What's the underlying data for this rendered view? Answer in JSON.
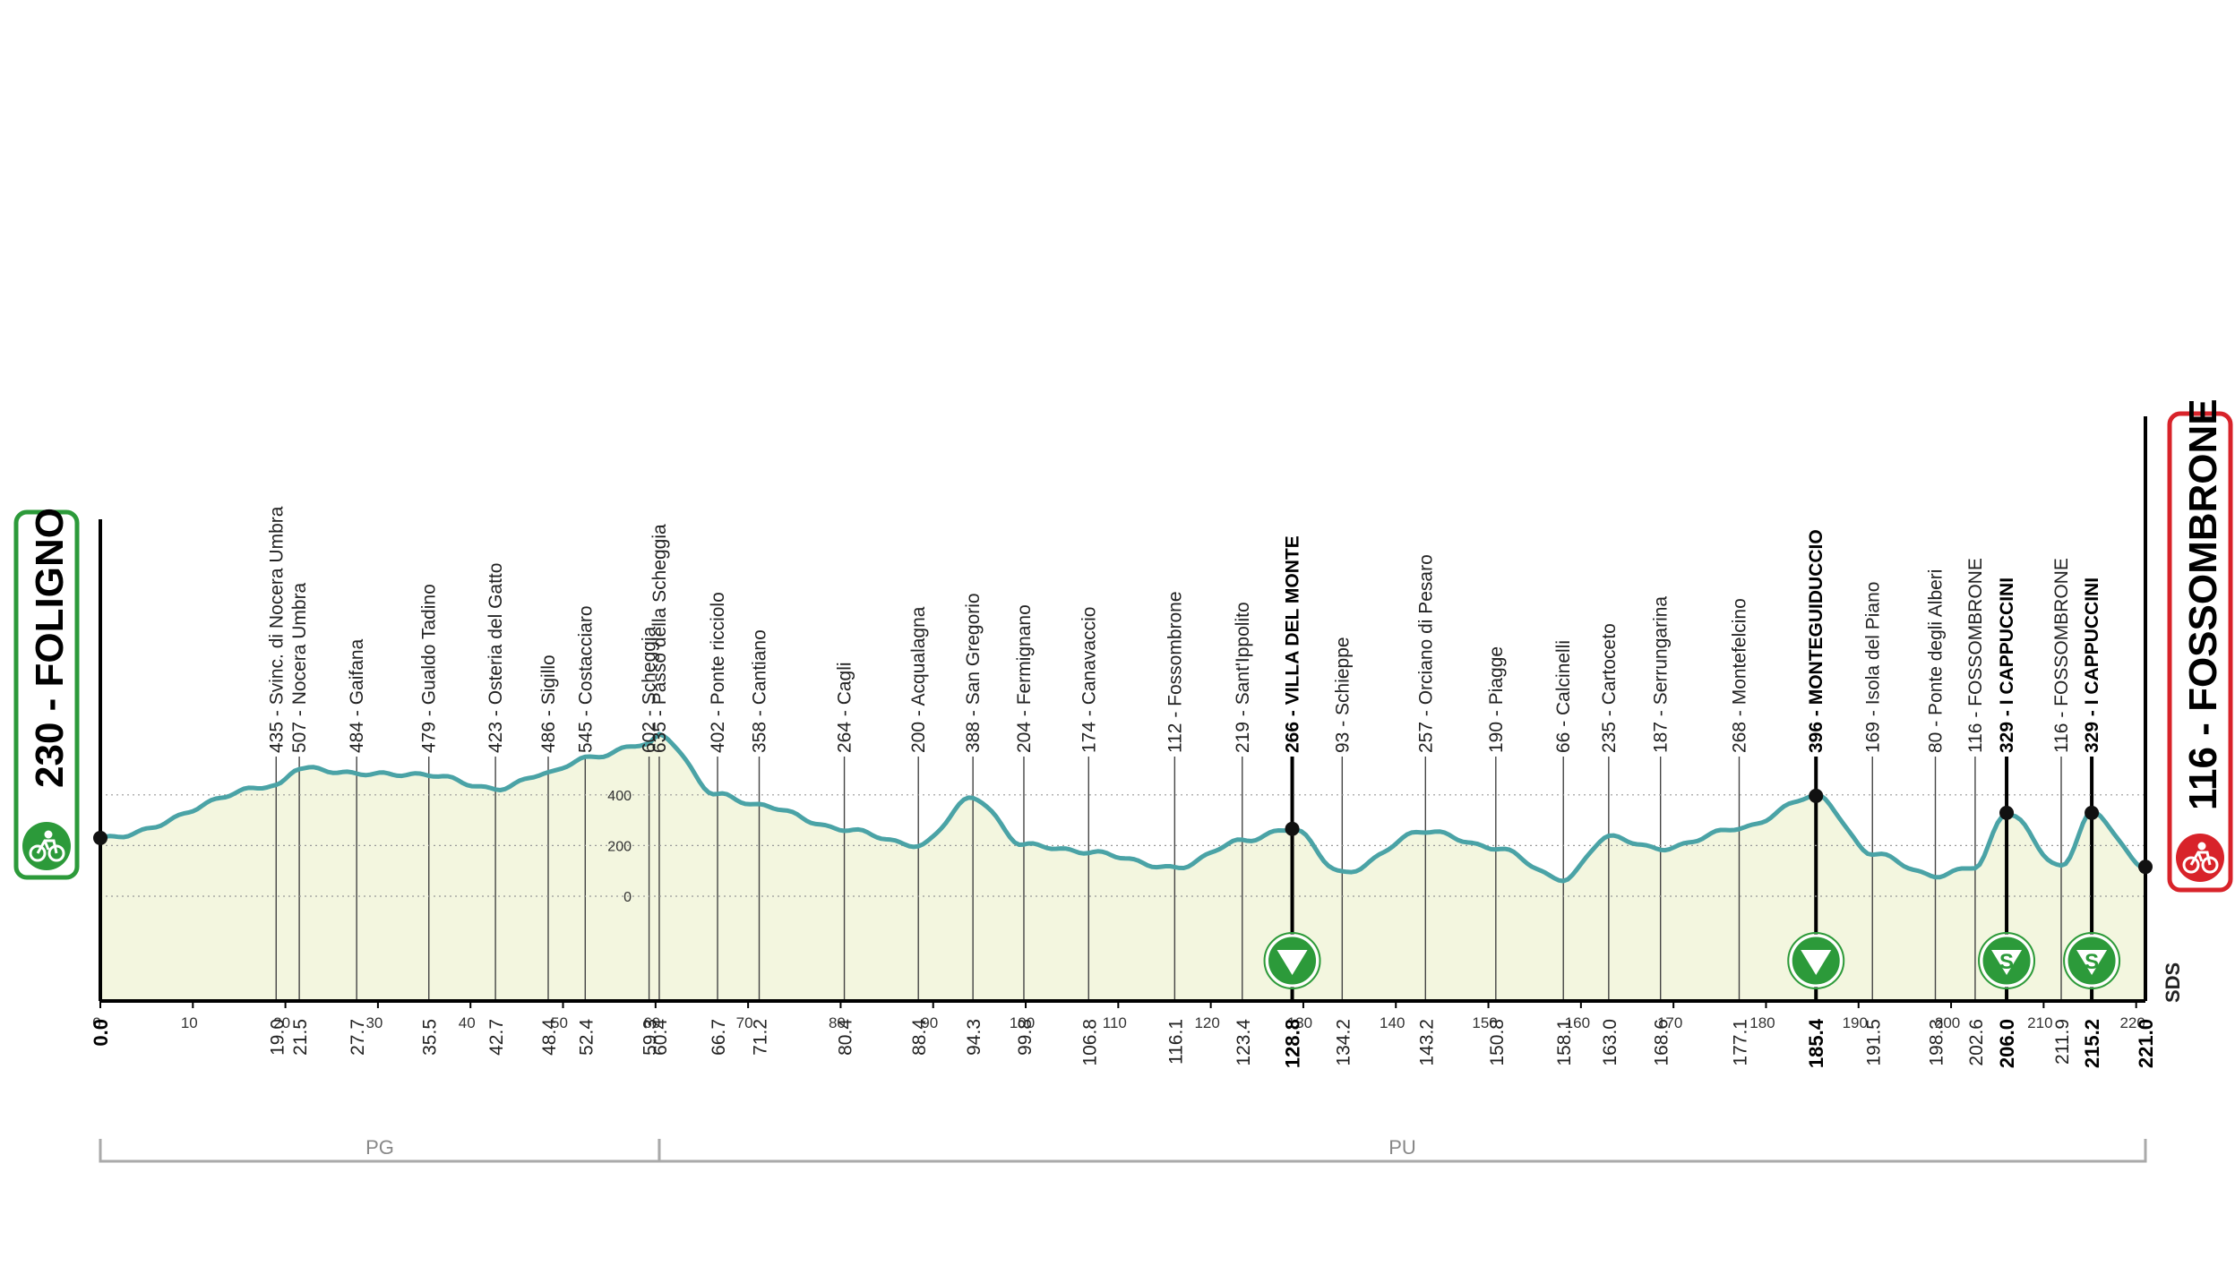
{
  "chart_data": {
    "type": "area",
    "distance_total_km": 221.0,
    "x_axis": {
      "range": [
        0,
        221.0
      ],
      "ticks": [
        "0",
        "10",
        "20",
        "30",
        "40",
        "50",
        "60",
        "70",
        "80",
        "90",
        "100",
        "110",
        "120",
        "130",
        "140",
        "150",
        "160",
        "170",
        "180",
        "190",
        "200",
        "210",
        "220"
      ]
    },
    "y_axis": {
      "ticks": [
        "0",
        "200",
        "400"
      ],
      "range": [
        -450,
        1200
      ]
    },
    "start": {
      "label": "230 - FOLIGNO",
      "km": "0.0",
      "elevation": 230
    },
    "finish": {
      "label": "116 - FOSSOMBRONE",
      "km": "221.0",
      "elevation": 116
    },
    "waypoints": [
      {
        "km": "19.0",
        "label": "435 - Svinc. di Nocera Umbra",
        "elevation": 435,
        "bold": false
      },
      {
        "km": "21.5",
        "label": "507 - Nocera Umbra",
        "elevation": 507,
        "bold": false
      },
      {
        "km": "27.7",
        "label": "484 - Gaifana",
        "elevation": 484,
        "bold": false
      },
      {
        "km": "35.5",
        "label": "479 - Gualdo Tadino",
        "elevation": 479,
        "bold": false
      },
      {
        "km": "42.7",
        "label": "423 - Osteria del Gatto",
        "elevation": 423,
        "bold": false
      },
      {
        "km": "48.4",
        "label": "486 - Sigillo",
        "elevation": 486,
        "bold": false
      },
      {
        "km": "52.4",
        "label": "545 - Costacciaro",
        "elevation": 545,
        "bold": false
      },
      {
        "km": "59.3",
        "label": "602 - Scheggia",
        "elevation": 602,
        "bold": false
      },
      {
        "km": "60.4",
        "label": "635 - Passo della Scheggia",
        "elevation": 635,
        "bold": false
      },
      {
        "km": "66.7",
        "label": "402 - Ponte ricciolo",
        "elevation": 402,
        "bold": false
      },
      {
        "km": "71.2",
        "label": "358 - Cantiano",
        "elevation": 358,
        "bold": false
      },
      {
        "km": "80.4",
        "label": "264 - Cagli",
        "elevation": 264,
        "bold": false
      },
      {
        "km": "88.4",
        "label": "200 - Acqualagna",
        "elevation": 200,
        "bold": false
      },
      {
        "km": "94.3",
        "label": "388 - San Gregorio",
        "elevation": 388,
        "bold": false
      },
      {
        "km": "99.8",
        "label": "204 - Fermignano",
        "elevation": 204,
        "bold": false
      },
      {
        "km": "106.8",
        "label": "174 - Canavaccio",
        "elevation": 174,
        "bold": false
      },
      {
        "km": "116.1",
        "label": "112 - Fossombrone",
        "elevation": 112,
        "bold": false
      },
      {
        "km": "123.4",
        "label": "219 - Sant'Ippolito",
        "elevation": 219,
        "bold": false
      },
      {
        "km": "128.8",
        "label": "266 - VILLA DEL MONTE",
        "elevation": 266,
        "bold": true,
        "marker": "gpm"
      },
      {
        "km": "134.2",
        "label": "93 - Schieppe",
        "elevation": 93,
        "bold": false
      },
      {
        "km": "143.2",
        "label": "257 - Orciano di Pesaro",
        "elevation": 257,
        "bold": false
      },
      {
        "km": "150.8",
        "label": "190 - Piagge",
        "elevation": 190,
        "bold": false
      },
      {
        "km": "158.1",
        "label": "66 - Calcinelli",
        "elevation": 66,
        "bold": false
      },
      {
        "km": "163.0",
        "label": "235 - Cartoceto",
        "elevation": 235,
        "bold": false
      },
      {
        "km": "168.6",
        "label": "187 - Serrungarina",
        "elevation": 187,
        "bold": false
      },
      {
        "km": "177.1",
        "label": "268 - Montefelcino",
        "elevation": 268,
        "bold": false
      },
      {
        "km": "185.4",
        "label": "396 - MONTEGUIDUCCIO",
        "elevation": 396,
        "bold": true,
        "marker": "gpm"
      },
      {
        "km": "191.5",
        "label": "169 - Isola del Piano",
        "elevation": 169,
        "bold": false
      },
      {
        "km": "198.3",
        "label": "80 - Ponte degli Alberi",
        "elevation": 80,
        "bold": false
      },
      {
        "km": "202.6",
        "label": "116 - FOSSOMBRONE",
        "elevation": 116,
        "bold": false
      },
      {
        "km": "206.0",
        "label": "329 - I CAPPUCCINI",
        "elevation": 329,
        "bold": true,
        "marker": "gpm-s"
      },
      {
        "km": "211.9",
        "label": "116 - FOSSOMBRONE",
        "elevation": 116,
        "bold": false
      },
      {
        "km": "215.2",
        "label": "329 - I CAPPUCCINI",
        "elevation": 329,
        "bold": true,
        "marker": "gpm-s"
      }
    ],
    "regions": [
      {
        "label": "PG",
        "from_km": 0,
        "to_km": 60.4
      },
      {
        "label": "PU",
        "from_km": 60.4,
        "to_km": 221.0
      }
    ],
    "sprint_symbol": "S",
    "logo_text": "SDS",
    "colors": {
      "line": "#4aa3a6",
      "fill": "#f3f6df",
      "start_border": "#2c9a3a",
      "finish_border": "#d8232a",
      "gpm_marker": "#2c9a3a"
    }
  }
}
